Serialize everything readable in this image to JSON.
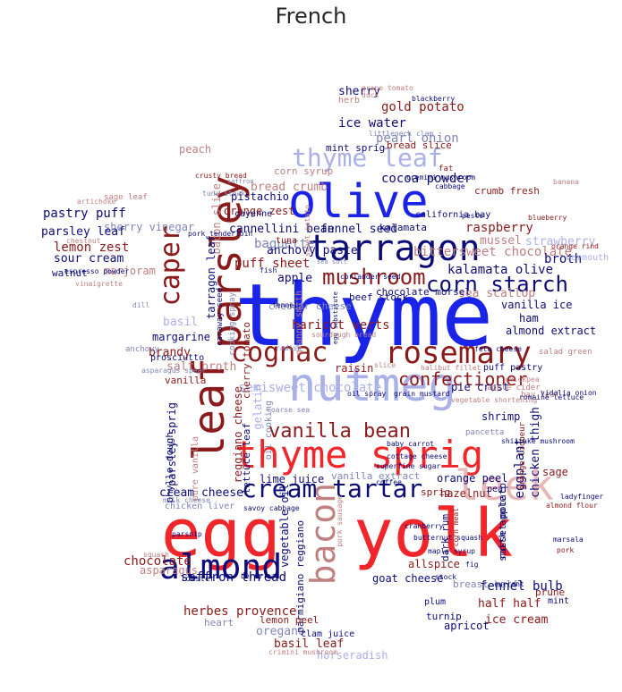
{
  "title": "French",
  "palette": {
    "red": "#f0262b",
    "darkred": "#8b1a1a",
    "navy": "#0c0c78",
    "blue": "#1a23e8",
    "lightblue": "#aab0e8",
    "pink": "#e8b8b8",
    "grayblue": "#7f86b8",
    "rosy": "#c08080"
  },
  "words": [
    {
      "text": "egg"
    },
    {
      "text": "yolk"
    },
    {
      "text": "thyme"
    },
    {
      "text": "olive"
    },
    {
      "text": "tarragon"
    },
    {
      "text": "parsley"
    },
    {
      "text": "nutmeg"
    },
    {
      "text": "thyme sprig"
    },
    {
      "text": "leaf"
    },
    {
      "text": "leek"
    },
    {
      "text": "almond"
    },
    {
      "text": "bacon"
    },
    {
      "text": "rosemary"
    },
    {
      "text": "cognac"
    },
    {
      "text": "cream tartar"
    },
    {
      "text": "thyme leaf"
    },
    {
      "text": "mushroom"
    },
    {
      "text": "caper"
    },
    {
      "text": "corn starch"
    },
    {
      "text": "vanilla bean"
    },
    {
      "text": "confectioner"
    },
    {
      "text": "semisweet chocolate"
    },
    {
      "text": "bittersweet chocolate"
    },
    {
      "text": "baguette"
    },
    {
      "text": "puff sheet"
    },
    {
      "text": "cannellini bean"
    },
    {
      "text": "fennel seed"
    },
    {
      "text": "anchovy paste"
    },
    {
      "text": "kalamata olive"
    },
    {
      "text": "sea scallop"
    },
    {
      "text": "broth"
    },
    {
      "text": "strawberry"
    },
    {
      "text": "raspberry"
    },
    {
      "text": "mussel"
    },
    {
      "text": "crumb fresh"
    },
    {
      "text": "cocoa powder"
    },
    {
      "text": "pearl onion"
    },
    {
      "text": "ice water"
    },
    {
      "text": "gold potato"
    },
    {
      "text": "sherry"
    },
    {
      "text": "herb"
    },
    {
      "text": "mint sprig"
    },
    {
      "text": "bread slice"
    },
    {
      "text": "bread crumb"
    },
    {
      "text": "corn syrup"
    },
    {
      "text": "orange zest"
    },
    {
      "text": "pistachio"
    },
    {
      "text": "bacon slice"
    },
    {
      "text": "pastry puff"
    },
    {
      "text": "sherry vinegar"
    },
    {
      "text": "parsley leaf"
    },
    {
      "text": "lemon zest"
    },
    {
      "text": "sour cream"
    },
    {
      "text": "marjoram"
    },
    {
      "text": "walnut"
    },
    {
      "text": "peach"
    },
    {
      "text": "sage leaf"
    },
    {
      "text": "tarragon leaf"
    },
    {
      "text": "basil"
    },
    {
      "text": "brandy"
    },
    {
      "text": "margarine"
    },
    {
      "text": "prosciutto"
    },
    {
      "text": "anchovy"
    },
    {
      "text": "salt broth"
    },
    {
      "text": "cherry tomato"
    },
    {
      "text": "apple"
    },
    {
      "text": "cheddar cheese"
    },
    {
      "text": "beef stock"
    },
    {
      "text": "chocolate morsel"
    },
    {
      "text": "ham"
    },
    {
      "text": "vanilla ice"
    },
    {
      "text": "almond extract"
    },
    {
      "text": "haricot verts"
    },
    {
      "text": "raisin"
    },
    {
      "text": "puff pastry"
    },
    {
      "text": "vanilla"
    },
    {
      "text": "gelatin"
    },
    {
      "text": "oil cooking"
    },
    {
      "text": "reggiano cheese"
    },
    {
      "text": "parsley sprig"
    },
    {
      "text": "phyllo dough"
    },
    {
      "text": "pure vanilla"
    },
    {
      "text": "lettuce leaf"
    },
    {
      "text": "lime juice"
    },
    {
      "text": "vanilla extract"
    },
    {
      "text": "shrimp"
    },
    {
      "text": "chicken thigh"
    },
    {
      "text": "pie crust"
    },
    {
      "text": "eggplant"
    },
    {
      "text": "sage"
    },
    {
      "text": "orange peel"
    },
    {
      "text": "hazelnut"
    },
    {
      "text": "cream cheese"
    },
    {
      "text": "chicken liver"
    },
    {
      "text": "vegetable oil"
    },
    {
      "text": "parmigiano reggiano"
    },
    {
      "text": "dark rum"
    },
    {
      "text": "russet potato"
    },
    {
      "text": "smith apple"
    },
    {
      "text": "sprig"
    },
    {
      "text": "pear"
    },
    {
      "text": "chocolate"
    },
    {
      "text": "asparagus"
    },
    {
      "text": "saffron thread"
    },
    {
      "text": "herbes provence"
    },
    {
      "text": "heart"
    },
    {
      "text": "lemon peel"
    },
    {
      "text": "oregano"
    },
    {
      "text": "goat cheese"
    },
    {
      "text": "allspice"
    },
    {
      "text": "fennel bulb"
    },
    {
      "text": "half half"
    },
    {
      "text": "breast half"
    },
    {
      "text": "prune"
    },
    {
      "text": "mint"
    },
    {
      "text": "plum"
    },
    {
      "text": "turnip"
    },
    {
      "text": "apricot"
    },
    {
      "text": "ice cream"
    },
    {
      "text": "basil leaf"
    },
    {
      "text": "clam juice"
    },
    {
      "text": "horseradish"
    },
    {
      "text": "vermouth"
    },
    {
      "text": "kalamata"
    },
    {
      "text": "california bay"
    },
    {
      "text": "cayenne"
    },
    {
      "text": "tuna"
    },
    {
      "text": "caraway seed"
    },
    {
      "text": "cooking spray"
    },
    {
      "text": "granny smith"
    },
    {
      "text": "apple cider"
    },
    {
      "text": "bay leaf"
    },
    {
      "text": "orange liqueur"
    },
    {
      "text": "salad green"
    },
    {
      "text": "fat"
    },
    {
      "text": "pesto"
    },
    {
      "text": "blueberry"
    },
    {
      "text": "lobster"
    },
    {
      "text": "squash"
    },
    {
      "text": "cremini mushroom"
    },
    {
      "text": "crusty bread"
    },
    {
      "text": "saffron"
    },
    {
      "text": "artichoke"
    },
    {
      "text": "chestnut"
    },
    {
      "text": "espresso powder"
    },
    {
      "text": "vinaigrette"
    },
    {
      "text": "dill"
    },
    {
      "text": "asparagus spear"
    },
    {
      "text": "tuna steak"
    },
    {
      "text": "pork tenderloin"
    },
    {
      "text": "fish"
    },
    {
      "text": "fennel"
    },
    {
      "text": "radish"
    },
    {
      "text": "coriander seed"
    },
    {
      "text": "slice"
    },
    {
      "text": "halibut fillet"
    },
    {
      "text": "feta cheese"
    },
    {
      "text": "chickpea"
    },
    {
      "text": "romaine lettuce"
    },
    {
      "text": "oil spray"
    },
    {
      "text": "grain mustard"
    },
    {
      "text": "shiitake mushroom"
    },
    {
      "text": "coarse sea"
    },
    {
      "text": "superfine sugar"
    },
    {
      "text": "coffee"
    },
    {
      "text": "cottage cheese"
    },
    {
      "text": "pork sausage"
    },
    {
      "text": "savoy cabbage"
    },
    {
      "text": "milk cheese"
    },
    {
      "text": "parsnip"
    },
    {
      "text": "cranberry"
    },
    {
      "text": "butternut squash"
    },
    {
      "text": "maple syrup"
    },
    {
      "text": "stock"
    },
    {
      "text": "fig"
    },
    {
      "text": "currant"
    },
    {
      "text": "almond flour"
    },
    {
      "text": "marsala"
    },
    {
      "text": "pork"
    },
    {
      "text": "ladyfinger"
    },
    {
      "text": "corn meal"
    },
    {
      "text": "baby carrot"
    },
    {
      "text": "grape tomato"
    },
    {
      "text": "duck"
    },
    {
      "text": "blackberry"
    },
    {
      "text": "littleneck clam"
    },
    {
      "text": "cabbage"
    },
    {
      "text": "banana"
    },
    {
      "text": "orange rind"
    },
    {
      "text": "sea salt"
    },
    {
      "text": "egg substitute"
    },
    {
      "text": "sourdough bread"
    },
    {
      "text": "vegetable shortening"
    },
    {
      "text": "vidalia onion"
    },
    {
      "text": "crimini mushroom"
    },
    {
      "text": "pancetta"
    },
    {
      "text": "sweet potato"
    },
    {
      "text": "berry"
    }
  ]
}
